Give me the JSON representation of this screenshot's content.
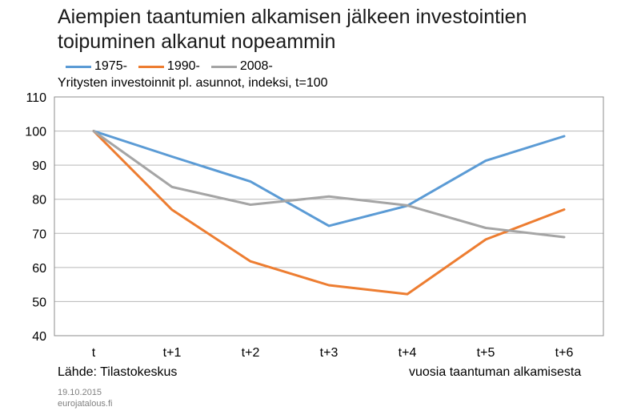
{
  "chart_data": {
    "type": "line",
    "title": "Aiempien taantumien alkamisen jälkeen investointien toipuminen alkanut nopeammin",
    "subtitle": "Yritysten investoinnit pl. asunnot, indeksi, t=100",
    "source": "Lähde: Tilastokeskus",
    "xlabel": "vuosia taantuman alkamisesta",
    "ylabel": "",
    "categories": [
      "t",
      "t+1",
      "t+2",
      "t+3",
      "t+4",
      "t+5",
      "t+6"
    ],
    "ylim": [
      40,
      110
    ],
    "yticks": [
      40,
      50,
      60,
      70,
      80,
      90,
      100,
      110
    ],
    "grid": true,
    "legend_position": "top-left",
    "series": [
      {
        "name": "1975-",
        "color": "#5b9bd5",
        "values": [
          100,
          92.5,
          85.2,
          72.2,
          78.1,
          91.3,
          98.5
        ]
      },
      {
        "name": "1990-",
        "color": "#ed7d31",
        "values": [
          100,
          76.9,
          61.8,
          54.8,
          52.2,
          68.2,
          77.0
        ]
      },
      {
        "name": "2008-",
        "color": "#a5a5a5",
        "values": [
          100,
          83.6,
          78.4,
          80.8,
          78.2,
          71.6,
          68.9
        ]
      }
    ]
  },
  "footer": {
    "date": "19.10.2015",
    "site": "eurojatalous.fi"
  }
}
